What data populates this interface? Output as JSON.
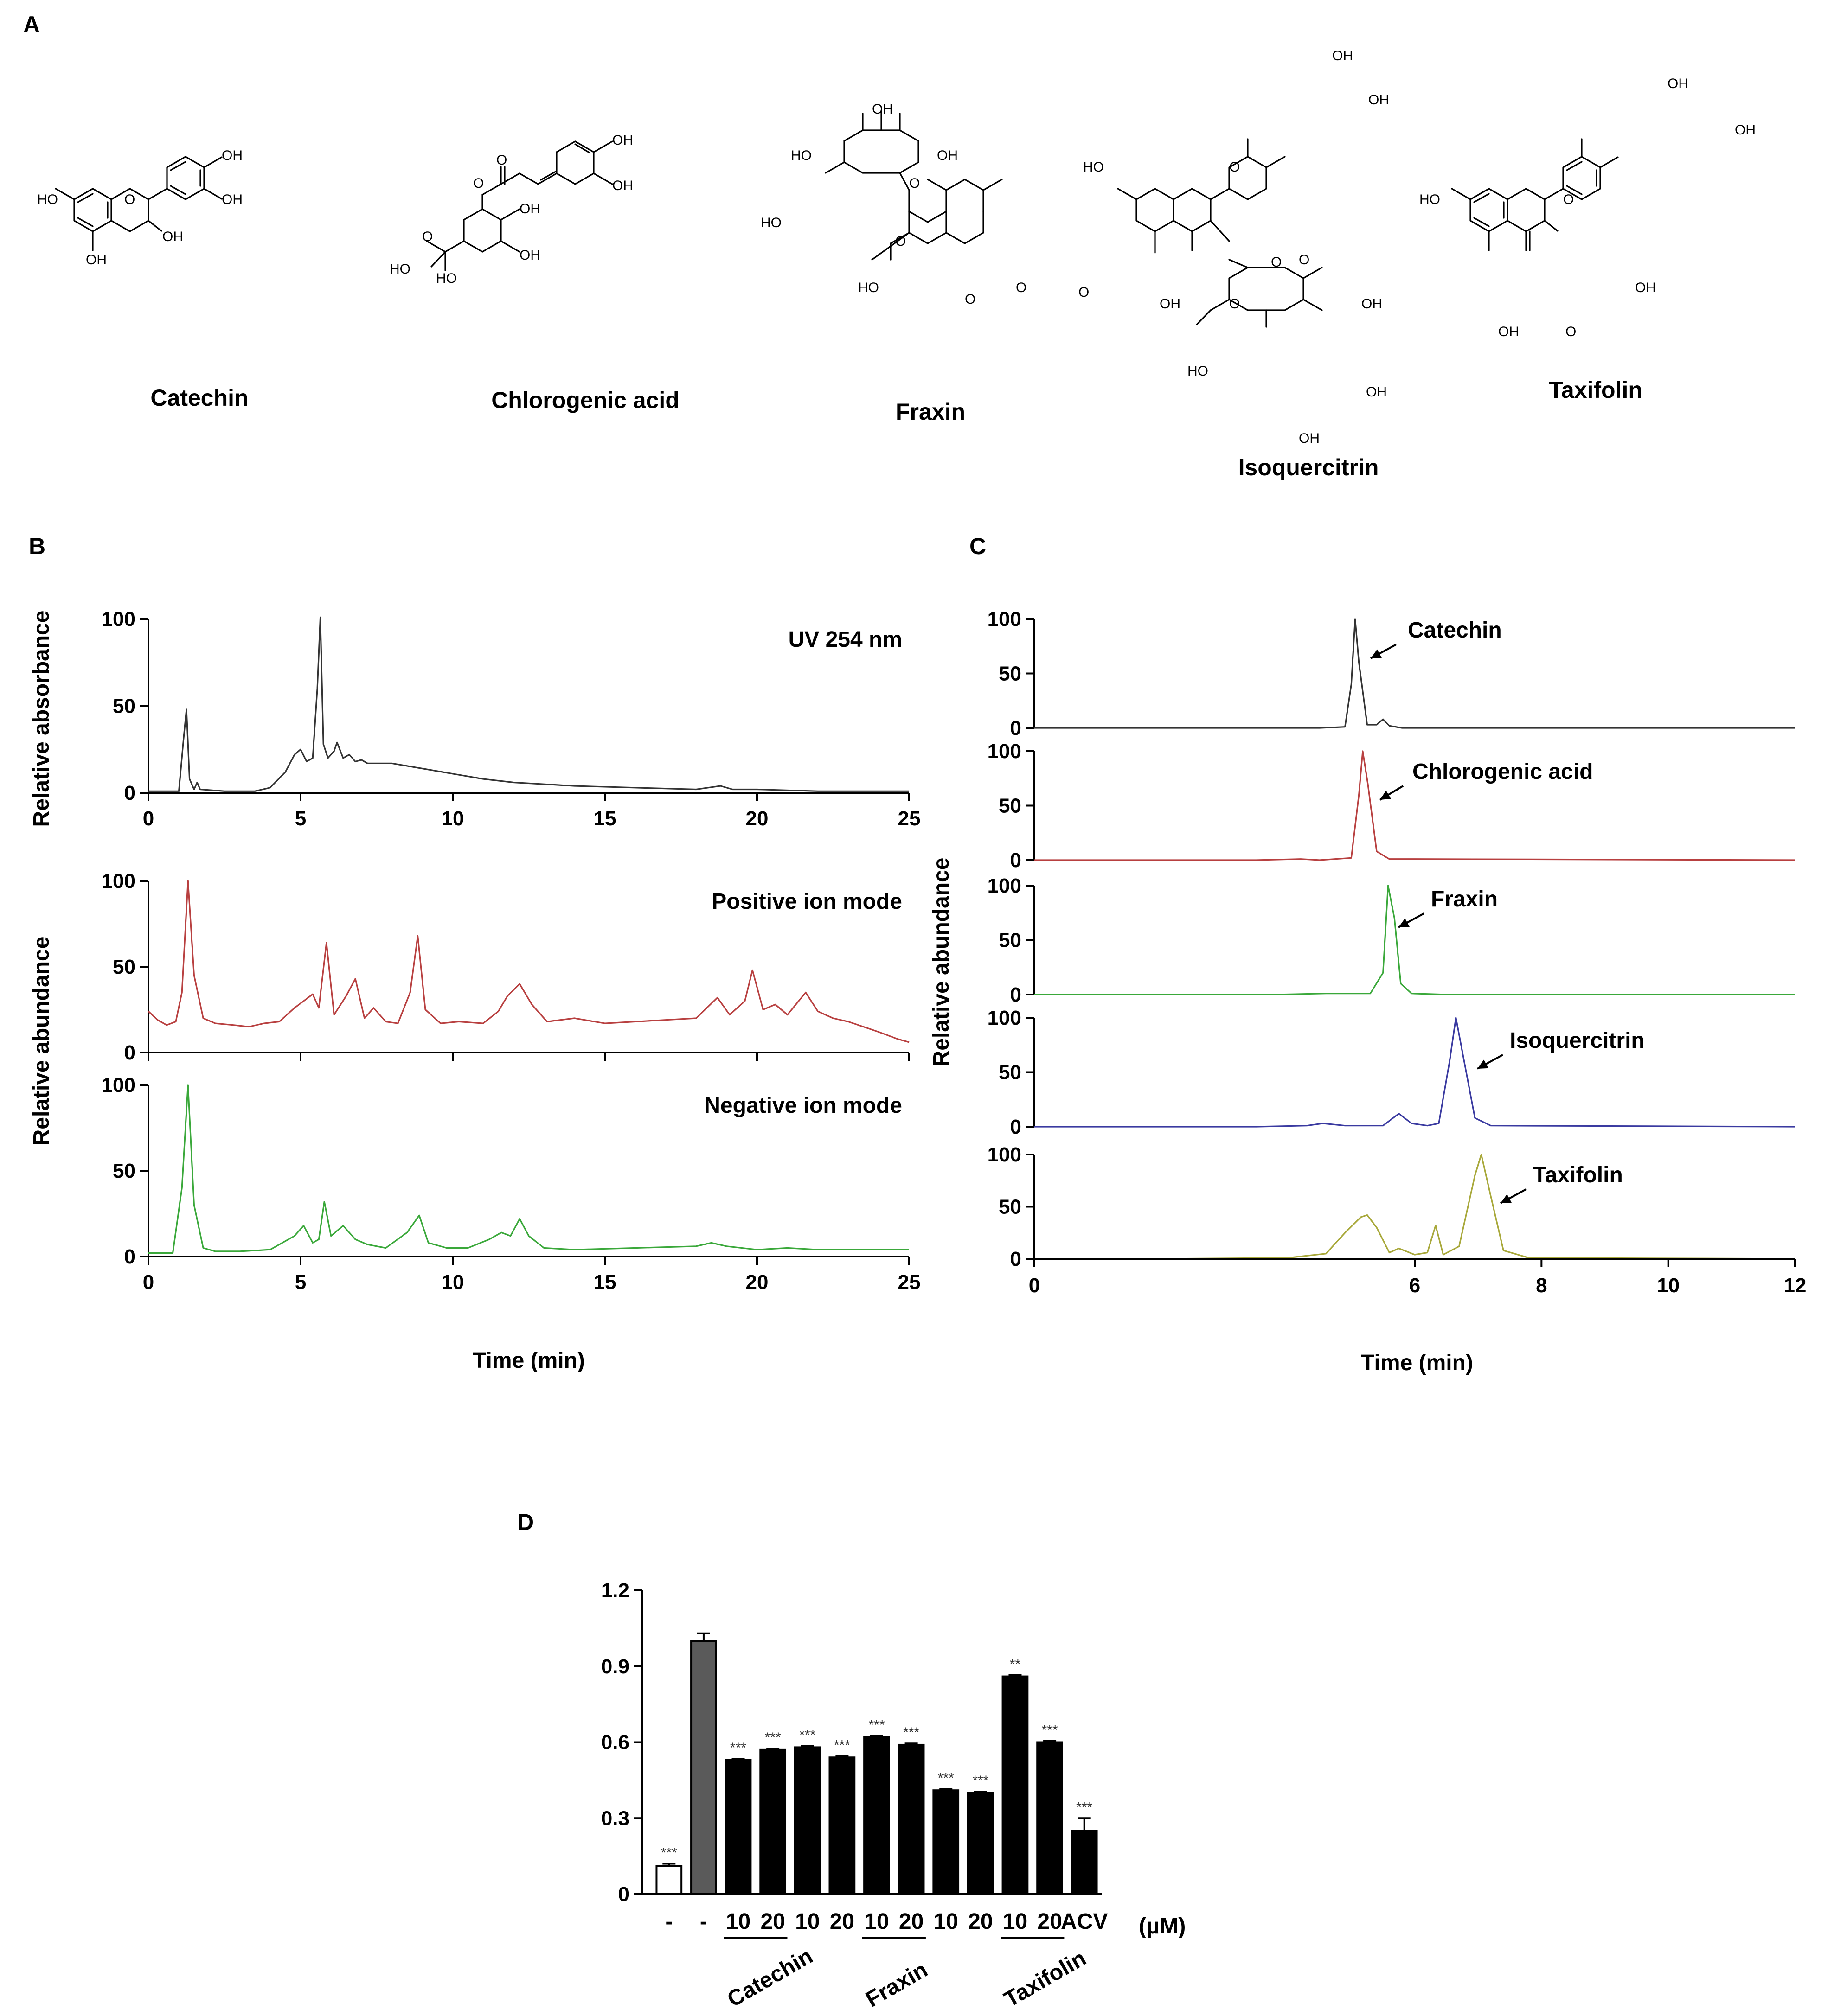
{
  "panel_labels": {
    "a": "A",
    "b": "B",
    "c": "C",
    "d": "D"
  },
  "structures": [
    {
      "name": "Catechin",
      "atoms": [
        "HO",
        "OH",
        "OH",
        "O",
        "OH",
        "OH"
      ]
    },
    {
      "name": "Chlorogenic acid",
      "atoms": [
        "O",
        "OH",
        "OH",
        "O",
        "O",
        "OH",
        "HO",
        "HO",
        "OH"
      ]
    },
    {
      "name": "Fraxin",
      "atoms": [
        "OH",
        "HO",
        "OH",
        "HO",
        "O",
        "O",
        "HO",
        "O",
        "O",
        "O"
      ]
    },
    {
      "name": "Isoquercitrin",
      "atoms": [
        "OH",
        "OH",
        "HO",
        "O",
        "OH",
        "O",
        "O",
        "O",
        "OH",
        "HO",
        "OH",
        "OH"
      ]
    },
    {
      "name": "Taxifolin",
      "atoms": [
        "OH",
        "OH",
        "HO",
        "O",
        "OH",
        "OH",
        "O"
      ]
    }
  ],
  "chart_data": [
    {
      "type": "line",
      "panel": "B",
      "xlabel": "Time (min)",
      "ylabels": [
        "Relative absorbance",
        "Relative abundance"
      ],
      "xlim": [
        0,
        25
      ],
      "xticks": [
        "0",
        "5",
        "10",
        "15",
        "20",
        "25"
      ],
      "ylim": [
        0,
        100
      ],
      "yticks": [
        "0",
        "50",
        "100"
      ],
      "series": [
        {
          "name": "UV 254 nm",
          "color": "#333333",
          "x": [
            0,
            1.0,
            1.15,
            1.25,
            1.35,
            1.5,
            1.6,
            1.7,
            2.5,
            3.5,
            4.0,
            4.5,
            4.8,
            5.0,
            5.2,
            5.4,
            5.55,
            5.65,
            5.75,
            5.9,
            6.1,
            6.2,
            6.4,
            6.6,
            6.8,
            7.0,
            7.2,
            7.5,
            8.0,
            9.0,
            10,
            11,
            12,
            14,
            16,
            18,
            18.8,
            19.2,
            20,
            22,
            25
          ],
          "y": [
            1,
            1,
            30,
            48,
            8,
            2,
            6,
            2,
            1,
            1,
            3,
            12,
            22,
            25,
            18,
            20,
            60,
            101,
            28,
            20,
            24,
            29,
            20,
            22,
            18,
            19,
            17,
            17,
            17,
            14,
            11,
            8,
            6,
            4,
            3,
            2,
            4,
            2,
            2,
            1,
            1
          ]
        },
        {
          "name": "Positive ion mode",
          "color": "#b84040",
          "x": [
            0,
            0.3,
            0.6,
            0.9,
            1.1,
            1.3,
            1.5,
            1.8,
            2.2,
            2.8,
            3.3,
            3.8,
            4.3,
            4.8,
            5.1,
            5.4,
            5.6,
            5.85,
            6.1,
            6.5,
            6.8,
            7.1,
            7.4,
            7.8,
            8.2,
            8.6,
            8.85,
            9.1,
            9.6,
            10.2,
            11.0,
            11.5,
            11.8,
            12.2,
            12.6,
            13.1,
            14,
            15,
            16,
            17,
            18,
            18.7,
            19.1,
            19.6,
            19.85,
            20.2,
            20.6,
            21.0,
            21.6,
            22.0,
            22.5,
            23.0,
            24.0,
            24.6,
            25
          ],
          "y": [
            24,
            19,
            16,
            18,
            35,
            100,
            45,
            20,
            17,
            16,
            15,
            17,
            18,
            26,
            30,
            34,
            26,
            64,
            22,
            33,
            43,
            20,
            26,
            18,
            17,
            35,
            68,
            25,
            17,
            18,
            17,
            24,
            33,
            40,
            28,
            18,
            20,
            17,
            18,
            19,
            20,
            32,
            22,
            30,
            48,
            25,
            28,
            22,
            35,
            24,
            20,
            18,
            12,
            8,
            6
          ]
        },
        {
          "name": "Negative ion mode",
          "color": "#3aa83a",
          "x": [
            0,
            0.8,
            1.1,
            1.3,
            1.5,
            1.8,
            2.2,
            3.0,
            4.0,
            4.8,
            5.1,
            5.4,
            5.6,
            5.78,
            6.0,
            6.4,
            6.8,
            7.2,
            7.8,
            8.5,
            8.9,
            9.2,
            9.8,
            10.5,
            11.2,
            11.6,
            11.9,
            12.2,
            12.5,
            13.0,
            14,
            16,
            18,
            18.5,
            19,
            20,
            21,
            22,
            23,
            25
          ],
          "y": [
            2,
            2,
            40,
            100,
            30,
            5,
            3,
            3,
            4,
            12,
            18,
            8,
            10,
            32,
            12,
            18,
            10,
            7,
            5,
            14,
            24,
            8,
            5,
            5,
            10,
            14,
            12,
            22,
            12,
            5,
            4,
            5,
            6,
            8,
            6,
            4,
            5,
            4,
            4,
            4
          ]
        }
      ]
    },
    {
      "type": "line",
      "panel": "C",
      "xlabel": "Time (min)",
      "ylabel": "Relative abundance",
      "xlim": [
        0,
        12
      ],
      "xticks": [
        "0",
        "6",
        "8",
        "10",
        "12"
      ],
      "ylim": [
        0,
        100
      ],
      "yticks": [
        "0",
        "50",
        "100"
      ],
      "series": [
        {
          "name": "Catechin",
          "color": "#333333",
          "x": [
            0,
            4.5,
            4.9,
            5.0,
            5.06,
            5.12,
            5.25,
            5.4,
            5.5,
            5.6,
            5.8,
            12
          ],
          "y": [
            0,
            0,
            1,
            40,
            100,
            60,
            3,
            3,
            8,
            2,
            0,
            0
          ]
        },
        {
          "name": "Chlorogenic acid",
          "color": "#b84040",
          "x": [
            0,
            3.5,
            4.2,
            4.5,
            5.0,
            5.12,
            5.18,
            5.26,
            5.4,
            5.6,
            6.0,
            12
          ],
          "y": [
            0,
            0,
            1,
            0,
            2,
            60,
            100,
            70,
            8,
            1,
            1,
            0
          ]
        },
        {
          "name": "Fraxin",
          "color": "#3aa83a",
          "x": [
            0,
            3.8,
            4.6,
            5.3,
            5.5,
            5.58,
            5.68,
            5.78,
            5.95,
            6.5,
            12
          ],
          "y": [
            0,
            0,
            1,
            1,
            20,
            100,
            70,
            10,
            1,
            0,
            0
          ]
        },
        {
          "name": "Isoquercitrin",
          "color": "#3a3aa0",
          "x": [
            0,
            3.5,
            4.3,
            4.55,
            4.9,
            5.5,
            5.75,
            5.95,
            6.2,
            6.38,
            6.55,
            6.65,
            6.78,
            6.95,
            7.2,
            12
          ],
          "y": [
            0,
            0,
            1,
            3,
            1,
            1,
            12,
            3,
            1,
            3,
            60,
            100,
            60,
            8,
            1,
            0
          ]
        },
        {
          "name": "Taxifolin",
          "color": "#a8a83a",
          "x": [
            0,
            2.0,
            4.0,
            4.6,
            4.9,
            5.15,
            5.25,
            5.4,
            5.6,
            5.75,
            6.0,
            6.2,
            6.33,
            6.45,
            6.7,
            6.95,
            7.05,
            7.2,
            7.4,
            7.8,
            12
          ],
          "y": [
            0,
            0,
            1,
            5,
            25,
            40,
            42,
            30,
            6,
            10,
            4,
            6,
            32,
            4,
            12,
            80,
            100,
            60,
            8,
            1,
            0
          ]
        }
      ]
    },
    {
      "type": "bar",
      "panel": "D",
      "ylim": [
        0,
        1.2
      ],
      "yticks": [
        "0",
        "0.3",
        "0.6",
        "0.9",
        "1.2"
      ],
      "unit_label": "(μM)",
      "bars": [
        {
          "label": "-",
          "value": 0.11,
          "error": 0.01,
          "fill": "#ffffff",
          "sig": "***"
        },
        {
          "label": "-",
          "value": 1.0,
          "error": 0.03,
          "fill": "#5a5a5a",
          "sig": ""
        },
        {
          "label": "10",
          "value": 0.53,
          "error": 0.005,
          "fill": "#000000",
          "sig": "***"
        },
        {
          "label": "20",
          "value": 0.57,
          "error": 0.005,
          "fill": "#000000",
          "sig": "***"
        },
        {
          "label": "10",
          "value": 0.58,
          "error": 0.005,
          "fill": "#000000",
          "sig": "***"
        },
        {
          "label": "20",
          "value": 0.54,
          "error": 0.005,
          "fill": "#000000",
          "sig": "***"
        },
        {
          "label": "10",
          "value": 0.62,
          "error": 0.005,
          "fill": "#000000",
          "sig": "***"
        },
        {
          "label": "20",
          "value": 0.59,
          "error": 0.005,
          "fill": "#000000",
          "sig": "***"
        },
        {
          "label": "10",
          "value": 0.41,
          "error": 0.005,
          "fill": "#000000",
          "sig": "***"
        },
        {
          "label": "20",
          "value": 0.4,
          "error": 0.005,
          "fill": "#000000",
          "sig": "***"
        },
        {
          "label": "10",
          "value": 0.86,
          "error": 0.005,
          "fill": "#000000",
          "sig": "**"
        },
        {
          "label": "20",
          "value": 0.6,
          "error": 0.005,
          "fill": "#000000",
          "sig": "***"
        },
        {
          "label": "ACV",
          "value": 0.25,
          "error": 0.05,
          "fill": "#000000",
          "sig": "***"
        }
      ],
      "groups": [
        "Catechin",
        "Fraxin",
        "Taxifolin"
      ]
    }
  ]
}
